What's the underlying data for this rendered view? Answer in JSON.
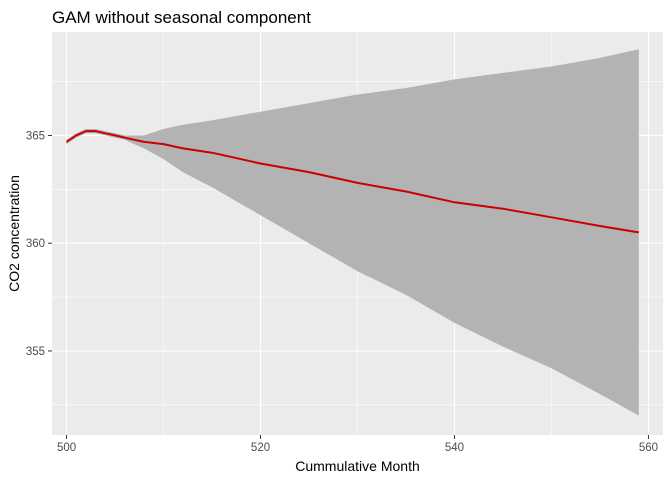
{
  "chart_data": {
    "type": "line",
    "title": "GAM without seasonal component",
    "xlabel": "Cummulative Month",
    "ylabel": "CO2 concentration",
    "xlim": [
      498.5,
      561.5
    ],
    "ylim": [
      351.1,
      369.8
    ],
    "x_ticks": [
      500,
      520,
      540,
      560
    ],
    "x_tick_labels": [
      "500",
      "520",
      "540",
      "560"
    ],
    "y_ticks": [
      355,
      360,
      365
    ],
    "y_tick_labels": [
      "355",
      "360",
      "365"
    ],
    "grid": true,
    "legend": "none",
    "series": [
      {
        "type": "line",
        "color": "#cc0000",
        "x": [
          500,
          501,
          502,
          503,
          504,
          505,
          506,
          507,
          508,
          510,
          512,
          515,
          520,
          525,
          530,
          535,
          540,
          545,
          550,
          555,
          559
        ],
        "y": [
          364.7,
          365.0,
          365.2,
          365.2,
          365.1,
          365.0,
          364.9,
          364.8,
          364.7,
          364.6,
          364.4,
          364.2,
          363.7,
          363.3,
          362.8,
          362.4,
          361.9,
          361.6,
          361.2,
          360.8,
          360.5
        ]
      }
    ],
    "ribbon": {
      "color": "#b3b3b3",
      "x": [
        500,
        501,
        502,
        503,
        504,
        505,
        506,
        507,
        508,
        510,
        512,
        515,
        520,
        525,
        530,
        535,
        540,
        545,
        550,
        555,
        559
      ],
      "upper": [
        364.8,
        365.1,
        365.3,
        365.3,
        365.2,
        365.1,
        365.0,
        365.0,
        365.0,
        365.3,
        365.5,
        365.7,
        366.1,
        366.5,
        366.9,
        367.2,
        367.6,
        367.9,
        368.2,
        368.6,
        369.0
      ],
      "lower": [
        364.6,
        364.9,
        365.1,
        365.1,
        365.0,
        364.9,
        364.8,
        364.6,
        364.4,
        363.9,
        363.3,
        362.6,
        361.3,
        360.0,
        358.7,
        357.6,
        356.3,
        355.2,
        354.2,
        353.0,
        352.0
      ]
    }
  }
}
